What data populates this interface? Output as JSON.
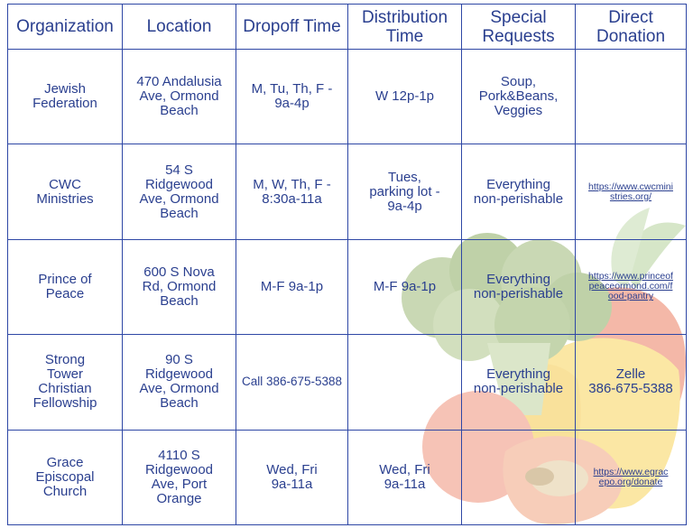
{
  "headers": [
    "Organization",
    "Location",
    "Dropoff Time",
    "Distribution\nTime",
    "Special\nRequests",
    "Direct\nDonation"
  ],
  "rows": [
    {
      "organization": "Jewish\nFederation",
      "location": "470 Andalusia\nAve, Ormond\nBeach",
      "dropoff": "M, Tu, Th, F -\n9a-4p",
      "distribution": "W 12p-1p",
      "requests": "Soup,\nPork&Beans,\nVeggies",
      "donation": ""
    },
    {
      "organization": "CWC\nMinistries",
      "location": "54 S\nRidgewood\nAve, Ormond\nBeach",
      "dropoff": "M, W, Th, F -\n8:30a-11a",
      "distribution": "Tues,\nparking lot -\n9a-4p",
      "requests": "Everything\nnon-perishable",
      "donation": "https://www.cwcmini\nstries.org/"
    },
    {
      "organization": "Prince of\nPeace",
      "location": "600 S Nova\nRd, Ormond\nBeach",
      "dropoff": "M-F 9a-1p",
      "distribution": "M-F 9a-1p",
      "requests": "Everything\nnon-perishable",
      "donation": "https://www.princeof\npeaceormond.com/f\nood-pantry"
    },
    {
      "organization": "Strong\nTower\nChristian\nFellowship",
      "location": "90 S\nRidgewood\nAve, Ormond\nBeach",
      "dropoff": "Call 386-675-5388",
      "distribution": "",
      "requests": "Everything\nnon-perishable",
      "donation": "Zelle\n386-675-5388"
    },
    {
      "organization": "Grace\nEpiscopal\nChurch",
      "location": "4110 S\nRidgewood\nAve, Port\nOrange",
      "dropoff": "Wed, Fri\n9a-11a",
      "distribution": "Wed, Fri\n9a-11a",
      "requests": "",
      "donation": "https://www.egrac\nepo.org/donate"
    }
  ],
  "colors": {
    "text": "#2a3f8f",
    "border": "#2e47a5",
    "broccoli": "#c9d8b4",
    "tomato": "#f6c3b6",
    "pepper_red": "#f4b8a8",
    "pepper_yellow": "#fbe7a4",
    "carrot_top": "#cfe2bf"
  }
}
